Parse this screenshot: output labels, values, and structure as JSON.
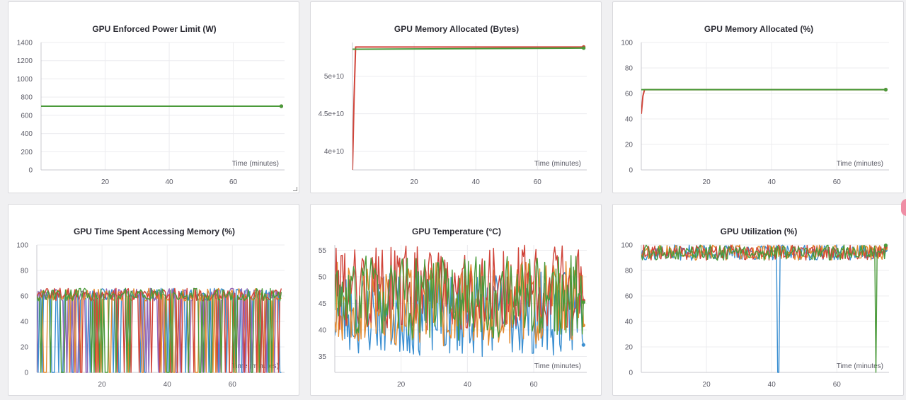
{
  "colors": {
    "series_red": "#d0443a",
    "series_green": "#4a9a3a",
    "series_blue": "#3b8fd1",
    "series_orange": "#e48a2f",
    "series_purple": "#9466b8",
    "grid": "#ececef"
  },
  "chart_data": [
    {
      "id": "power",
      "type": "line",
      "title": "GPU Enforced Power Limit (W)",
      "xlabel": "Time (minutes)",
      "ylabel": "",
      "xlim": [
        0,
        76
      ],
      "ylim": [
        0,
        1400
      ],
      "xticks": [
        20,
        40,
        60
      ],
      "yticks": [
        0,
        200,
        400,
        600,
        800,
        1000,
        1200,
        1400
      ],
      "ytick_labels": [
        "0",
        "200",
        "400",
        "600",
        "800",
        "1000",
        "1200",
        "1400"
      ],
      "grid": true,
      "series": [
        {
          "color": "#d0443a",
          "x": [
            0,
            75
          ],
          "y": [
            700,
            700
          ],
          "end_marker": true
        },
        {
          "color": "#4a9a3a",
          "x": [
            0,
            75
          ],
          "y": [
            700,
            700
          ],
          "end_marker": true
        }
      ]
    },
    {
      "id": "memalloc_bytes",
      "type": "line",
      "title": "GPU Memory Allocated (Bytes)",
      "xlabel": "Time (minutes)",
      "ylabel": "",
      "xlim": [
        0,
        76
      ],
      "ylim": [
        37500000000,
        54500000000
      ],
      "xticks": [
        20,
        40,
        60
      ],
      "yticks": [
        40000000000,
        45000000000,
        50000000000
      ],
      "ytick_labels": [
        "4e+10",
        "4.5e+10",
        "5e+10"
      ],
      "grid": true,
      "series": [
        {
          "color": "#d0443a",
          "x": [
            0,
            0.5,
            1,
            75
          ],
          "y": [
            37500000000,
            47000000000,
            53900000000,
            53900000000
          ],
          "end_marker": true
        },
        {
          "color": "#4a9a3a",
          "x": [
            0,
            1,
            75
          ],
          "y": [
            53600000000,
            53600000000,
            53750000000
          ],
          "end_marker": true
        }
      ]
    },
    {
      "id": "memalloc_pct",
      "type": "line",
      "title": "GPU Memory Allocated (%)",
      "xlabel": "Time (minutes)",
      "ylabel": "",
      "xlim": [
        0,
        76
      ],
      "ylim": [
        0,
        100
      ],
      "xticks": [
        20,
        40,
        60
      ],
      "yticks": [
        0,
        20,
        40,
        60,
        80,
        100
      ],
      "ytick_labels": [
        "0",
        "20",
        "40",
        "60",
        "80",
        "100"
      ],
      "grid": true,
      "series": [
        {
          "color": "#d0443a",
          "x": [
            0,
            0.5,
            1,
            75
          ],
          "y": [
            44,
            58,
            63,
            63
          ],
          "end_marker": true
        },
        {
          "color": "#4a9a3a",
          "x": [
            0,
            1,
            75
          ],
          "y": [
            63,
            63,
            63
          ],
          "end_marker": true
        }
      ]
    },
    {
      "id": "memaccess",
      "type": "line",
      "title": "GPU Time Spent Accessing Memory (%)",
      "xlabel": "Time (minutes)",
      "ylabel": "",
      "xlim": [
        0,
        76
      ],
      "ylim": [
        0,
        100
      ],
      "xticks": [
        20,
        40,
        60
      ],
      "yticks": [
        0,
        20,
        40,
        60,
        80,
        100
      ],
      "ytick_labels": [
        "0",
        "20",
        "40",
        "60",
        "80",
        "100"
      ],
      "grid": true,
      "noise": {
        "seed": 11,
        "n": 180,
        "base": 61,
        "amp": 5,
        "drop_prob": 0.22,
        "drop_to": 0,
        "xmax": 75
      },
      "series": [
        {
          "color": "#3b8fd1"
        },
        {
          "color": "#9466b8"
        },
        {
          "color": "#e48a2f"
        },
        {
          "color": "#d0443a"
        },
        {
          "color": "#4a9a3a"
        }
      ]
    },
    {
      "id": "temperature",
      "type": "line",
      "title": "GPU Temperature (°C)",
      "xlabel": "Time (minutes)",
      "ylabel": "",
      "xlim": [
        0,
        76
      ],
      "ylim": [
        32,
        56
      ],
      "xticks": [
        20,
        40,
        60
      ],
      "yticks": [
        35,
        40,
        45,
        50,
        55
      ],
      "ytick_labels": [
        "35",
        "40",
        "45",
        "50",
        "55"
      ],
      "grid": true,
      "noise": {
        "seed": 23,
        "n": 200,
        "base": 45,
        "amp": 8,
        "drop_prob": 0,
        "drop_to": 0,
        "xmax": 75
      },
      "series": [
        {
          "color": "#3b8fd1",
          "offset": -2,
          "end_marker": true
        },
        {
          "color": "#e48a2f",
          "offset": 0,
          "end_marker": true
        },
        {
          "color": "#d0443a",
          "offset": 3,
          "end_marker": true
        },
        {
          "color": "#4a9a3a",
          "offset": 1,
          "end_marker": true
        }
      ]
    },
    {
      "id": "utilization",
      "type": "line",
      "title": "GPU Utilization (%)",
      "xlabel": "Time (minutes)",
      "ylabel": "",
      "xlim": [
        0,
        76
      ],
      "ylim": [
        0,
        100
      ],
      "xticks": [
        20,
        40,
        60
      ],
      "yticks": [
        0,
        20,
        40,
        60,
        80,
        100
      ],
      "ytick_labels": [
        "0",
        "20",
        "40",
        "60",
        "80",
        "100"
      ],
      "grid": true,
      "noise": {
        "seed": 37,
        "n": 200,
        "base": 94,
        "amp": 6,
        "drop_prob": 0,
        "drop_to": 0,
        "xmax": 75,
        "cap": 100
      },
      "spikes": [
        {
          "series": 0,
          "x": 42,
          "y": 0
        },
        {
          "series": 3,
          "x": 72,
          "y": 0
        }
      ],
      "series": [
        {
          "color": "#3b8fd1",
          "end_marker": true
        },
        {
          "color": "#e48a2f",
          "end_marker": true
        },
        {
          "color": "#d0443a",
          "end_marker": true
        },
        {
          "color": "#4a9a3a",
          "end_marker": true
        }
      ]
    }
  ]
}
